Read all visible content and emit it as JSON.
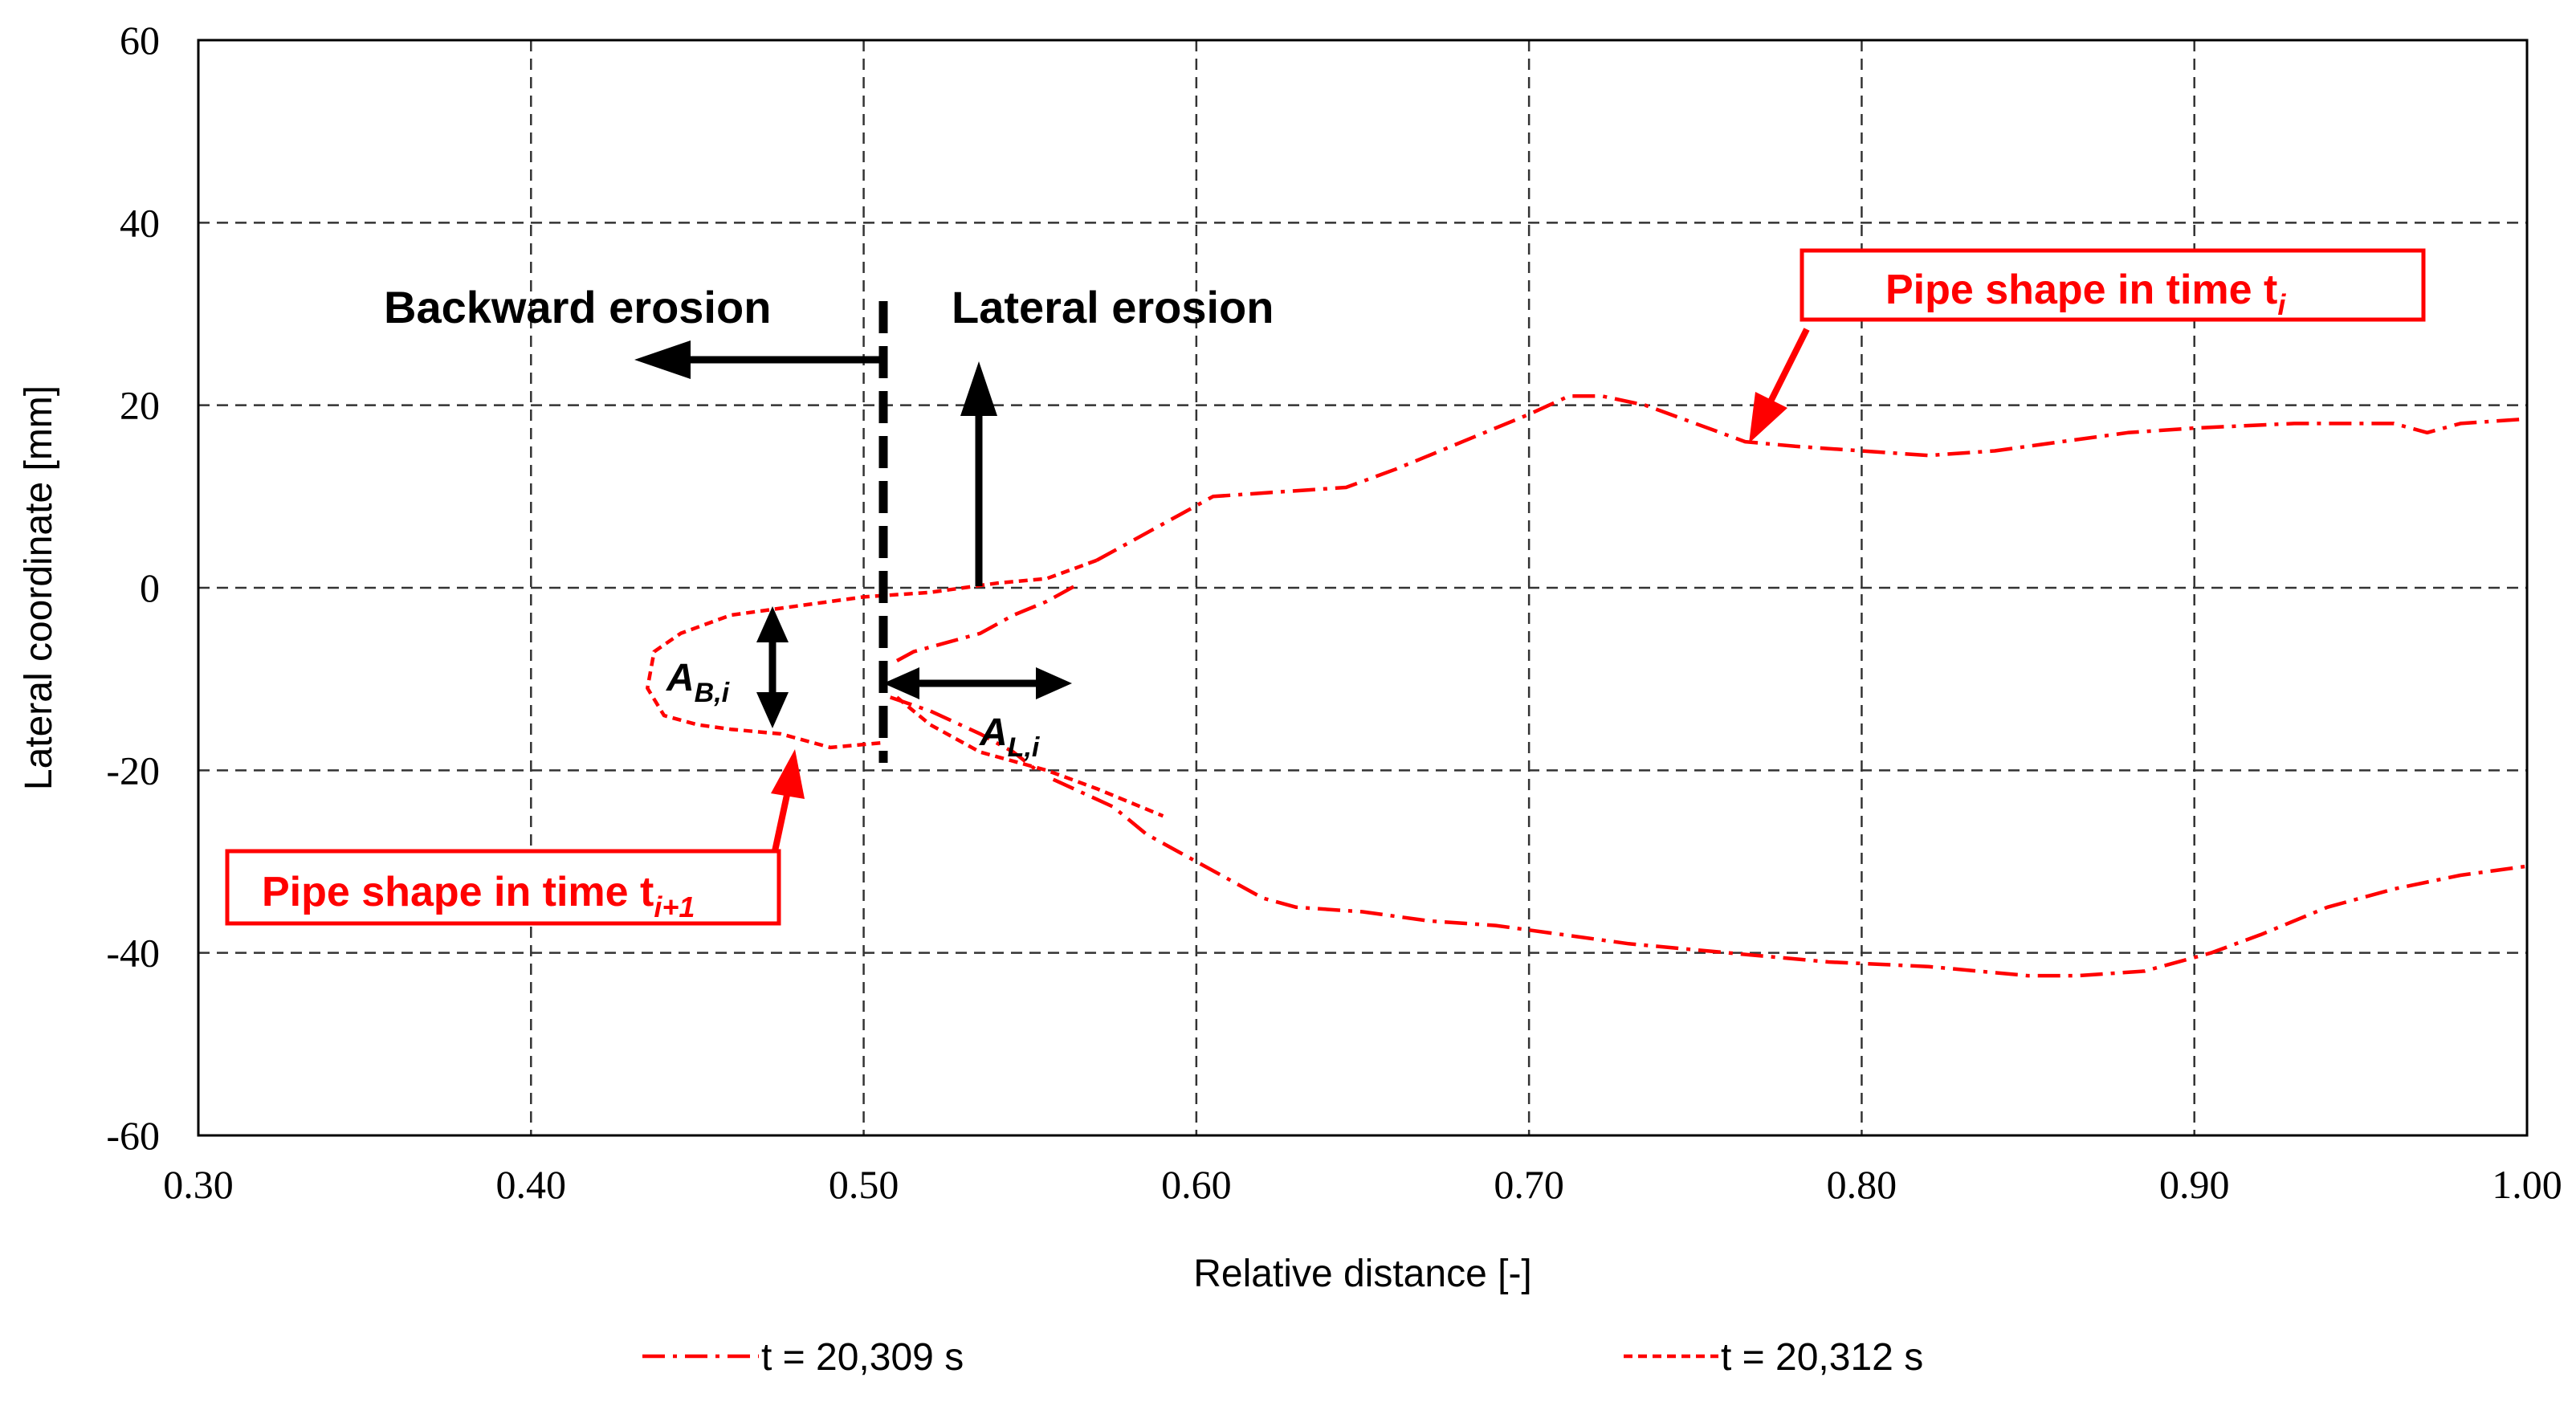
{
  "chart_data": {
    "type": "line",
    "xlabel": "Relative distance [-]",
    "ylabel": "Lateral coordinate [mm]",
    "xlim": [
      0.3,
      1.0
    ],
    "ylim": [
      -60,
      60
    ],
    "x_ticks": [
      "0.30",
      "0.40",
      "0.50",
      "0.60",
      "0.70",
      "0.80",
      "0.90",
      "1.00"
    ],
    "y_ticks": [
      "60",
      "40",
      "20",
      "0",
      "-20",
      "-40",
      "-60"
    ],
    "grid": true,
    "legend_position": "bottom",
    "series": [
      {
        "name": "t = 20,309 s",
        "style": "dash-dot",
        "color": "#ff0000",
        "segments": [
          [
            [
              0.51,
              -8
            ],
            [
              0.515,
              -7
            ],
            [
              0.525,
              -6
            ],
            [
              0.535,
              -5
            ],
            [
              0.545,
              -3
            ],
            [
              0.555,
              -1.5
            ],
            [
              0.565,
              0.5
            ]
          ],
          [
            [
              0.508,
              -12
            ],
            [
              0.52,
              -13.5
            ],
            [
              0.535,
              -16
            ],
            [
              0.545,
              -18
            ],
            [
              0.552,
              -20
            ]
          ],
          [
            [
              0.557,
              -21
            ],
            [
              0.575,
              -24
            ],
            [
              0.585,
              -27
            ],
            [
              0.595,
              -29
            ],
            [
              0.61,
              -32
            ],
            [
              0.62,
              -34
            ],
            [
              0.63,
              -35
            ],
            [
              0.65,
              -35.5
            ],
            [
              0.67,
              -36.5
            ],
            [
              0.69,
              -37
            ],
            [
              0.71,
              -38
            ],
            [
              0.73,
              -39
            ],
            [
              0.76,
              -40
            ],
            [
              0.79,
              -41
            ],
            [
              0.82,
              -41.5
            ],
            [
              0.85,
              -42.5
            ],
            [
              0.865,
              -42.5
            ],
            [
              0.885,
              -42
            ],
            [
              0.905,
              -40
            ],
            [
              0.92,
              -38
            ],
            [
              0.94,
              -35
            ],
            [
              0.96,
              -33
            ],
            [
              0.98,
              -31.5
            ],
            [
              1.0,
              -30.5
            ]
          ],
          [
            [
              0.57,
              3
            ],
            [
              0.58,
              5
            ],
            [
              0.595,
              8
            ],
            [
              0.605,
              10
            ],
            [
              0.625,
              10.5
            ],
            [
              0.645,
              11
            ],
            [
              0.66,
              13
            ],
            [
              0.68,
              16
            ],
            [
              0.7,
              19
            ],
            [
              0.712,
              21
            ],
            [
              0.722,
              21
            ],
            [
              0.735,
              20
            ],
            [
              0.75,
              18
            ],
            [
              0.765,
              16
            ],
            [
              0.78,
              15.5
            ],
            [
              0.8,
              15
            ],
            [
              0.82,
              14.5
            ],
            [
              0.84,
              15
            ],
            [
              0.86,
              16
            ],
            [
              0.88,
              17
            ],
            [
              0.9,
              17.5
            ],
            [
              0.93,
              18
            ],
            [
              0.96,
              18
            ],
            [
              0.97,
              17
            ],
            [
              0.98,
              18
            ],
            [
              1.0,
              18.5
            ]
          ]
        ]
      },
      {
        "name": "t = 20,312 s",
        "style": "dashed",
        "color": "#ff0000",
        "segments": [
          [
            [
              0.51,
              -12
            ],
            [
              0.52,
              -15
            ],
            [
              0.535,
              -18
            ],
            [
              0.555,
              -20
            ],
            [
              0.57,
              -22
            ],
            [
              0.59,
              -25
            ]
          ],
          [
            [
              0.505,
              -17
            ],
            [
              0.49,
              -17.5
            ],
            [
              0.475,
              -16
            ],
            [
              0.46,
              -15.5
            ],
            [
              0.45,
              -15
            ],
            [
              0.44,
              -14
            ],
            [
              0.435,
              -11
            ],
            [
              0.437,
              -7
            ],
            [
              0.445,
              -5
            ],
            [
              0.46,
              -3
            ],
            [
              0.48,
              -2
            ],
            [
              0.5,
              -1
            ],
            [
              0.52,
              -0.5
            ],
            [
              0.54,
              0.5
            ],
            [
              0.555,
              1
            ],
            [
              0.57,
              3
            ]
          ]
        ]
      }
    ],
    "annotations": {
      "backward_erosion": "Backward erosion",
      "lateral_erosion": "Lateral erosion",
      "a_b_main": "A",
      "a_b_sub": "B,i",
      "a_l_main": "A",
      "a_l_sub": "L,i",
      "box_ti_text": "Pipe shape in time t",
      "box_ti_sub": "i",
      "box_ti1_text": "Pipe shape in time t",
      "box_ti1_sub": "i+1"
    }
  }
}
